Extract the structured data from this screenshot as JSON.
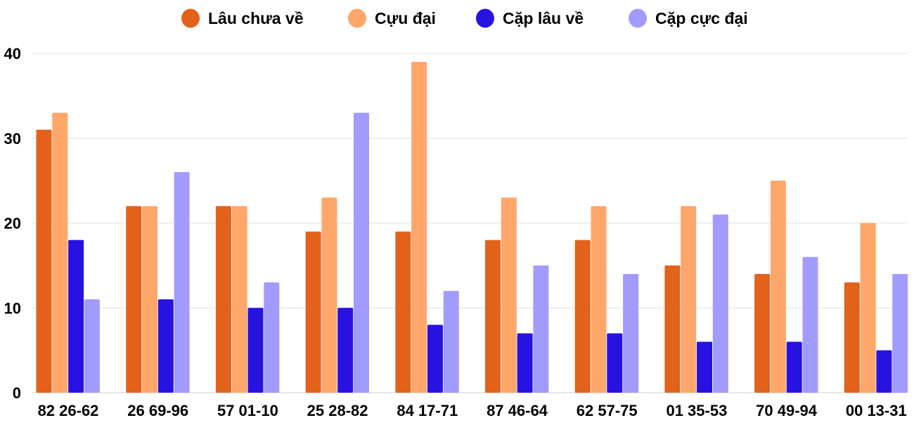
{
  "chart_data": {
    "type": "bar",
    "categories": [
      "82 26-62",
      "26 69-96",
      "57 01-10",
      "25 28-82",
      "84 17-71",
      "87 46-64",
      "62 57-75",
      "01 35-53",
      "70 49-94",
      "00 13-31"
    ],
    "series": [
      {
        "name": "Lâu chưa về",
        "color": "#E2621B",
        "values": [
          31,
          22,
          22,
          19,
          19,
          18,
          18,
          15,
          14,
          13
        ]
      },
      {
        "name": "Cựu đại",
        "color": "#FFA66B",
        "values": [
          33,
          22,
          22,
          23,
          39,
          23,
          22,
          22,
          25,
          20
        ]
      },
      {
        "name": "Cặp lâu về",
        "color": "#2812E1",
        "values": [
          18,
          11,
          10,
          10,
          8,
          7,
          7,
          6,
          6,
          5
        ]
      },
      {
        "name": "Cặp cực đại",
        "color": "#A29BFE",
        "values": [
          11,
          26,
          13,
          33,
          12,
          15,
          14,
          21,
          16,
          14
        ]
      }
    ],
    "yticks": [
      0,
      10,
      20,
      30,
      40
    ],
    "ylim": [
      0,
      40
    ],
    "grid": true,
    "legend": "top-center",
    "title": "",
    "xlabel": "",
    "ylabel": ""
  }
}
